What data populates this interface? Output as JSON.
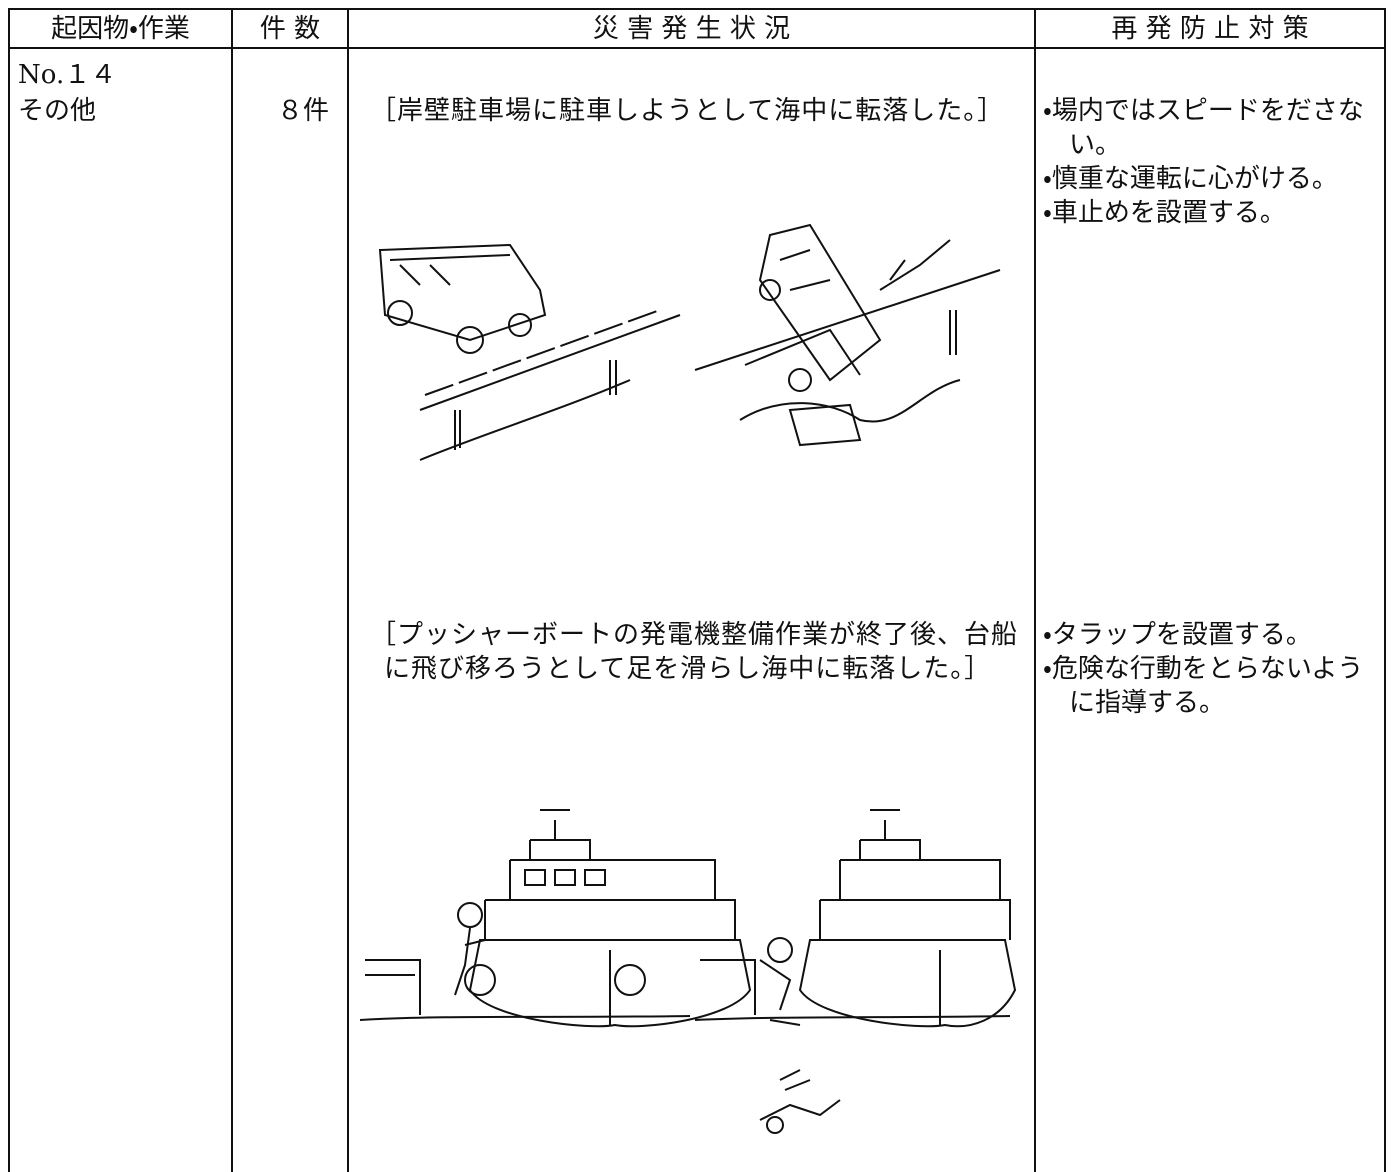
{
  "header": {
    "cells": [
      "起因物・作業",
      "件 数",
      "災 害 発 生 状 況",
      "再 発 防 止 対 策"
    ]
  },
  "row": {
    "number": "No.１４",
    "cause": "その他",
    "count": "８件",
    "incidents": [
      {
        "description": "［岸壁駐車場に駐車しようとして海中に転落した。］",
        "measures": [
          "・場内ではスピードをださない。",
          "・慎重な運転に心がける。",
          "・車止めを設置する。"
        ]
      },
      {
        "description": "［プッシャーボートの発電機整備作業が終了後、台船に飛び移ろうとして足を滑らし海中に転落した。］",
        "measures": [
          "・タラップを設置する。",
          "・危険な行動をとらないように指導する。"
        ]
      }
    ]
  }
}
